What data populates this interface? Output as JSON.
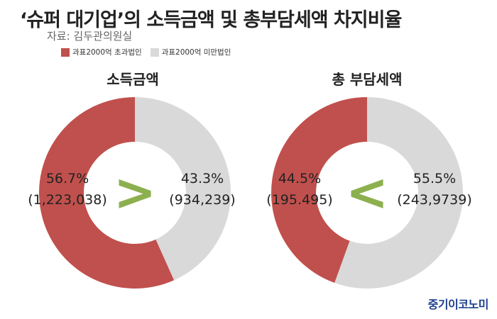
{
  "title": "‘슈퍼 대기업’의 소득금액 및 총부담세액 차지비율",
  "source": "자료: 김두관의원실",
  "legend": [
    {
      "label": "과표2000억 초과법인",
      "color": "#c0504d"
    },
    {
      "label": "과표2000억 미만법인",
      "color": "#d9d9d9"
    }
  ],
  "brand": "중기이코노미",
  "chart_data": [
    {
      "type": "pie",
      "title": "소득금액",
      "series": [
        {
          "name": "과표2000억 초과법인",
          "value": 56.7,
          "percent_label": "56.7%",
          "amount_label": "(1,223,038)",
          "color": "#c0504d"
        },
        {
          "name": "과표2000억 미만법인",
          "value": 43.3,
          "percent_label": "43.3%",
          "amount_label": "(934,239)",
          "color": "#d9d9d9"
        }
      ],
      "comparison_symbol": ">",
      "comparison_color": "#8db04f"
    },
    {
      "type": "pie",
      "title": "총 부담세액",
      "series": [
        {
          "name": "과표2000억 초과법인",
          "value": 44.5,
          "percent_label": "44.5%",
          "amount_label": "(195.495)",
          "color": "#c0504d"
        },
        {
          "name": "과표2000억 미만법인",
          "value": 55.5,
          "percent_label": "55.5%",
          "amount_label": "(243,9739)",
          "color": "#d9d9d9"
        }
      ],
      "comparison_symbol": "<",
      "comparison_color": "#8db04f"
    }
  ]
}
